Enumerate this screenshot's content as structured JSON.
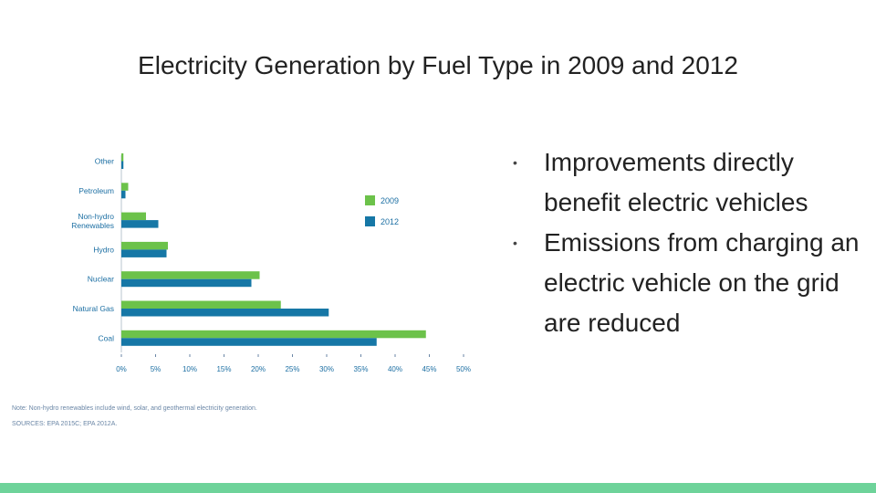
{
  "slide": {
    "title": "Electricity Generation by Fuel Type in 2009 and 2012"
  },
  "chart_data": {
    "type": "bar",
    "orientation": "horizontal",
    "title": "",
    "categories": [
      "Other",
      "Petroleum",
      "Non-hydro\nRenewables",
      "Hydro",
      "Nuclear",
      "Natural Gas",
      "Coal"
    ],
    "series": [
      {
        "name": "2009",
        "color": "#6cc24a",
        "values": [
          0.3,
          1.0,
          3.6,
          6.8,
          20.2,
          23.3,
          44.5
        ]
      },
      {
        "name": "2012",
        "color": "#1677a6",
        "values": [
          0.3,
          0.6,
          5.4,
          6.6,
          19.0,
          30.3,
          37.3
        ]
      }
    ],
    "x_ticks": [
      "0%",
      "5%",
      "10%",
      "15%",
      "20%",
      "25%",
      "30%",
      "35%",
      "40%",
      "45%",
      "50%"
    ],
    "xlim": [
      0,
      50
    ],
    "xlabel": "",
    "ylabel": "",
    "legend_position": "top-right",
    "note": "Note: Non-hydro renewables include wind, solar, and geothermal electricity generation.",
    "sources": "SOURCES: EPA 2015C; EPA 2012A."
  },
  "bullets": [
    "Improvements directly benefit electric vehicles",
    "Emissions from charging an electric vehicle on the grid are reduced"
  ],
  "colors": {
    "footer": "#6ed39a",
    "label": "#1c6fa3"
  }
}
